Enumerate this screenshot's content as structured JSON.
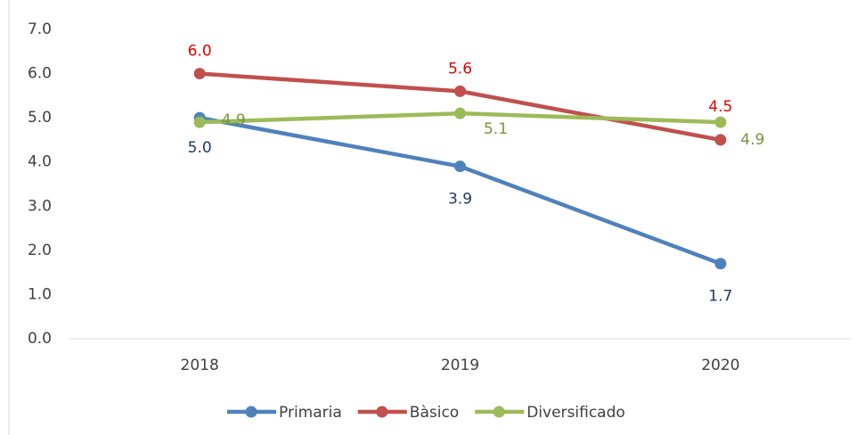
{
  "chart_data": {
    "type": "line",
    "categories": [
      "2018",
      "2019",
      "2020"
    ],
    "series": [
      {
        "name": "Primaria",
        "color": "#4f81bd",
        "label_color": "#1f3864",
        "values": [
          5.0,
          3.9,
          1.7
        ],
        "value_labels": [
          "5.0",
          "3.9",
          "1.7"
        ]
      },
      {
        "name": "Bàsico",
        "color": "#c0504d",
        "label_color": "#e00000",
        "values": [
          6.0,
          5.6,
          4.5
        ],
        "value_labels": [
          "6.0",
          "5.6",
          "4.5"
        ]
      },
      {
        "name": "Diversificado",
        "color": "#9bbb59",
        "label_color": "#77933c",
        "values": [
          4.9,
          5.1,
          4.9
        ],
        "value_labels": [
          "4.9",
          "5.1",
          "4.9"
        ]
      }
    ],
    "ylim": [
      0,
      7
    ],
    "yticks": [
      {
        "value": 0,
        "label": "0.0"
      },
      {
        "value": 1,
        "label": "1.0"
      },
      {
        "value": 2,
        "label": "2.0"
      },
      {
        "value": 3,
        "label": "3.0"
      },
      {
        "value": 4,
        "label": "4.0"
      },
      {
        "value": 5,
        "label": "5.0"
      },
      {
        "value": 6,
        "label": "6.0"
      },
      {
        "value": 7,
        "label": "7.0"
      }
    ],
    "grid": false,
    "legend": "bottom"
  }
}
